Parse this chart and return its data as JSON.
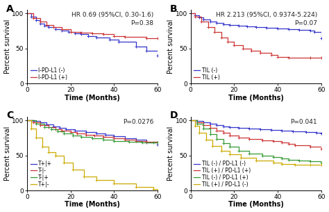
{
  "panel_A": {
    "title_line1": "HR 0.69 (95%CI, 0.30-1.6)",
    "title_line2": "P=0.38",
    "label": "A",
    "xlabel": "Time (Months)",
    "ylabel": "Percent survival",
    "xlim": [
      0,
      60
    ],
    "ylim": [
      0,
      105
    ],
    "yticks": [
      0,
      50,
      100
    ],
    "xticks": [
      0,
      20,
      40,
      60
    ],
    "series": [
      {
        "label": "I-PD-L1 (-)",
        "color": "#3333CC",
        "times": [
          0,
          2,
          4,
          6,
          8,
          10,
          13,
          16,
          19,
          22,
          25,
          28,
          32,
          38,
          42,
          50,
          55,
          60
        ],
        "surv": [
          100,
          95,
          90,
          85,
          82,
          80,
          77,
          75,
          73,
          71,
          70,
          68,
          66,
          63,
          60,
          53,
          47,
          40
        ]
      },
      {
        "label": "I-PD-L1 (+)",
        "color": "#CC3333",
        "times": [
          0,
          3,
          6,
          9,
          12,
          16,
          20,
          25,
          30,
          35,
          40,
          45,
          55,
          60
        ],
        "surv": [
          100,
          93,
          88,
          83,
          80,
          77,
          73,
          72,
          71,
          70,
          68,
          67,
          65,
          65
        ]
      }
    ]
  },
  "panel_B": {
    "title_line1": "HR 2.213 (95%CI, 0.9374-5.224)",
    "title_line2": "P=0.07",
    "label": "B",
    "xlabel": "Time (Months)",
    "ylabel": "Percent survival",
    "xlim": [
      0,
      60
    ],
    "ylim": [
      0,
      105
    ],
    "yticks": [
      0,
      50,
      100
    ],
    "xticks": [
      0,
      20,
      40,
      60
    ],
    "series": [
      {
        "label": "TIL (-)",
        "color": "#3333CC",
        "times": [
          0,
          2,
          4,
          6,
          9,
          12,
          15,
          18,
          22,
          26,
          30,
          35,
          40,
          45,
          50,
          55,
          57,
          60
        ],
        "surv": [
          100,
          97,
          94,
          91,
          88,
          86,
          84,
          83,
          82,
          81,
          80,
          79,
          78,
          77,
          76,
          75,
          73,
          65
        ]
      },
      {
        "label": "TIL (+)",
        "color": "#CC3333",
        "times": [
          0,
          2,
          5,
          8,
          11,
          14,
          17,
          20,
          24,
          28,
          32,
          37,
          40,
          45,
          55,
          60
        ],
        "surv": [
          100,
          95,
          88,
          80,
          73,
          66,
          60,
          55,
          50,
          47,
          44,
          41,
          38,
          37,
          37,
          37
        ]
      }
    ]
  },
  "panel_C": {
    "title_line1": "P=0.0276",
    "title_line2": "",
    "label": "C",
    "xlabel": "Time (Months)",
    "ylabel": "Percent survival",
    "xlim": [
      0,
      60
    ],
    "ylim": [
      0,
      105
    ],
    "yticks": [
      0,
      50,
      100
    ],
    "xticks": [
      0,
      20,
      40,
      60
    ],
    "series": [
      {
        "label": "T+|+",
        "color": "#3333CC",
        "times": [
          0,
          3,
          6,
          9,
          12,
          15,
          18,
          22,
          27,
          32,
          36,
          40,
          45,
          50,
          55,
          60
        ],
        "surv": [
          100,
          99,
          97,
          94,
          91,
          89,
          87,
          85,
          83,
          81,
          79,
          77,
          74,
          72,
          68,
          65
        ]
      },
      {
        "label": "T-|-",
        "color": "#CC3333",
        "times": [
          0,
          3,
          6,
          10,
          13,
          16,
          20,
          23,
          27,
          31,
          35,
          40,
          45,
          50,
          55,
          60
        ],
        "surv": [
          100,
          97,
          93,
          90,
          87,
          85,
          83,
          81,
          79,
          78,
          76,
          74,
          72,
          70,
          69,
          68
        ]
      },
      {
        "label": "T-|+",
        "color": "#339933",
        "times": [
          0,
          4,
          8,
          11,
          14,
          17,
          21,
          25,
          30,
          35,
          40,
          47,
          53,
          58,
          60
        ],
        "surv": [
          100,
          95,
          90,
          87,
          84,
          81,
          78,
          76,
          74,
          72,
          70,
          69,
          68,
          68,
          68
        ]
      },
      {
        "label": "T+|-",
        "color": "#CCAA00",
        "times": [
          0,
          2,
          4,
          7,
          10,
          13,
          17,
          21,
          26,
          32,
          40,
          50,
          58,
          60
        ],
        "surv": [
          100,
          88,
          75,
          62,
          55,
          50,
          40,
          30,
          20,
          15,
          10,
          5,
          2,
          0
        ]
      }
    ]
  },
  "panel_D": {
    "title_line1": "P=0.041",
    "title_line2": "",
    "label": "D",
    "xlabel": "Time (Months)",
    "ylabel": "Percent survival",
    "xlim": [
      0,
      60
    ],
    "ylim": [
      0,
      105
    ],
    "yticks": [
      0,
      50,
      100
    ],
    "xticks": [
      0,
      20,
      40,
      60
    ],
    "series": [
      {
        "label": "TIL (-) / PD-L1 (-)",
        "color": "#3333CC",
        "times": [
          0,
          3,
          6,
          9,
          12,
          15,
          18,
          22,
          27,
          32,
          37,
          42,
          47,
          53,
          58,
          60
        ],
        "surv": [
          100,
          99,
          97,
          95,
          93,
          91,
          90,
          89,
          88,
          87,
          86,
          85,
          84,
          83,
          82,
          81
        ]
      },
      {
        "label": "TIL (+) / PD-L1 (+)",
        "color": "#CC3333",
        "times": [
          0,
          3,
          6,
          9,
          12,
          15,
          18,
          22,
          27,
          33,
          38,
          42,
          45,
          48,
          55,
          60
        ],
        "surv": [
          100,
          97,
          93,
          89,
          85,
          82,
          78,
          75,
          73,
          71,
          70,
          68,
          66,
          64,
          62,
          60
        ]
      },
      {
        "label": "TIL (-) / PD-L1 (+)",
        "color": "#339933",
        "times": [
          0,
          3,
          6,
          9,
          12,
          15,
          18,
          22,
          27,
          33,
          38,
          42,
          45,
          50,
          55,
          60
        ],
        "surv": [
          100,
          95,
          88,
          80,
          73,
          67,
          62,
          57,
          53,
          50,
          48,
          46,
          44,
          43,
          42,
          40
        ]
      },
      {
        "label": "TIL (+) / PD-L1 (-)",
        "color": "#CCAA00",
        "times": [
          0,
          2,
          4,
          7,
          10,
          14,
          18,
          23,
          30,
          38,
          42,
          48,
          55,
          60
        ],
        "surv": [
          100,
          92,
          82,
          72,
          63,
          57,
          52,
          47,
          43,
          40,
          38,
          37,
          37,
          37
        ]
      }
    ]
  },
  "bg_color": "#ffffff",
  "tick_fontsize": 6.5,
  "label_fontsize": 7,
  "title_fontsize": 6.5,
  "legend_fontsize": 5.5,
  "panel_label_fontsize": 10
}
